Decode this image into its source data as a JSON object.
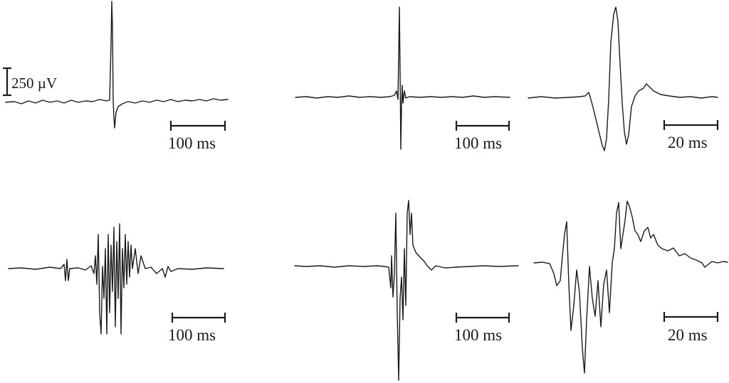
{
  "amplitude_bar": {
    "label": "250 µV"
  },
  "panels": [
    {
      "id": "A",
      "scale_label": "100 ms"
    },
    {
      "id": "B",
      "scale_label": "100 ms"
    },
    {
      "id": "C",
      "scale_label": "20 ms"
    },
    {
      "id": "D",
      "scale_label": "100 ms"
    },
    {
      "id": "E",
      "scale_label": "100 ms"
    },
    {
      "id": "F",
      "scale_label": "20 ms"
    }
  ]
}
